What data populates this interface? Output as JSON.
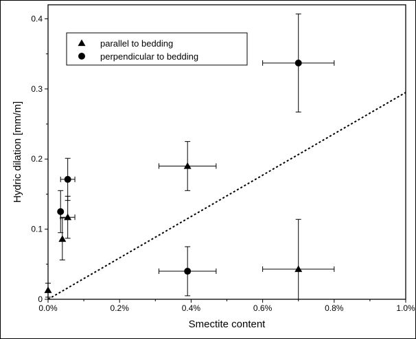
{
  "chart_data": {
    "type": "scatter",
    "xlabel": "Smectite content",
    "ylabel": "Hydric dilation [mm/m]",
    "xlim": [
      0,
      0.01
    ],
    "ylim": [
      0,
      0.42
    ],
    "x_ticks": [
      0,
      0.002,
      0.004,
      0.006,
      0.008,
      0.01
    ],
    "x_tick_labels": [
      "0.0%",
      "0.2%",
      "0.4%",
      "0.6%",
      "0.8%",
      "1.0%"
    ],
    "y_ticks": [
      0,
      0.1,
      0.2,
      0.3,
      0.4
    ],
    "y_tick_labels": [
      "0",
      "0.1",
      "0.2",
      "0.3",
      "0.4"
    ],
    "grid": false,
    "legend_position": "top-left",
    "series": [
      {
        "name": "parallel to bedding",
        "marker": "triangle",
        "color": "#000000",
        "points": [
          {
            "x": 0.0,
            "y": 0.013,
            "xerr": 0,
            "yerr": 0.01
          },
          {
            "x": 0.0004,
            "y": 0.086,
            "xerr": 0,
            "yerr": 0.03
          },
          {
            "x": 0.00055,
            "y": 0.117,
            "xerr": 0.0002,
            "yerr": 0.03
          },
          {
            "x": 0.0039,
            "y": 0.19,
            "xerr": 0.0008,
            "yerr": 0.035
          },
          {
            "x": 0.007,
            "y": 0.043,
            "xerr": 0.001,
            "yerr": 0.071
          }
        ]
      },
      {
        "name": "perpendicular to bedding",
        "marker": "circle",
        "color": "#000000",
        "points": [
          {
            "x": 0.00035,
            "y": 0.125,
            "xerr": 0,
            "yerr": 0.03
          },
          {
            "x": 0.00055,
            "y": 0.171,
            "xerr": 0.0002,
            "yerr": 0.03
          },
          {
            "x": 0.0039,
            "y": 0.04,
            "xerr": 0.0008,
            "yerr": 0.035
          },
          {
            "x": 0.007,
            "y": 0.337,
            "xerr": 0.001,
            "yerr": 0.07
          }
        ]
      }
    ],
    "reference_line": {
      "style": "dotted",
      "from": {
        "x": 0,
        "y": 0
      },
      "to": {
        "x": 0.01,
        "y": 0.295
      }
    }
  }
}
